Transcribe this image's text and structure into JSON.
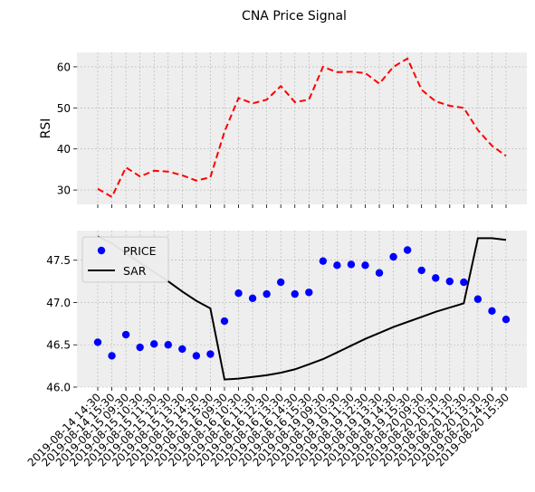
{
  "figure_title": "CNA Price Signal",
  "chart_data": [
    {
      "type": "line",
      "panel": "rsi",
      "title": "",
      "xlabel": "",
      "ylabel": "RSI",
      "ylim": [
        26.5,
        63.5
      ],
      "yticks": [
        30,
        40,
        50,
        60
      ],
      "grid": true,
      "series": [
        {
          "values": [
            30.3,
            28.3,
            35.5,
            33.3,
            34.7,
            34.5,
            33.6,
            32.3,
            33.1,
            44.2,
            52.4,
            51.1,
            52.0,
            55.3,
            51.4,
            52.0,
            60.0,
            58.7,
            58.8,
            58.5,
            55.9,
            60.0,
            62.0,
            54.4,
            51.6,
            50.5,
            50.0,
            44.6,
            40.8,
            38.3
          ],
          "color": "#ff0000",
          "style": "dashed"
        }
      ]
    },
    {
      "type": "scatter",
      "panel": "price",
      "title": "",
      "xlabel": "",
      "ylabel": "",
      "ylim": [
        46.0,
        47.85
      ],
      "yticks": [
        46.0,
        46.5,
        47.0,
        47.5
      ],
      "ytick_labels": [
        "46.0",
        "46.5",
        "47.0",
        "47.5"
      ],
      "grid": true,
      "legend": {
        "placement": "top-left"
      },
      "categories": [
        "2019-08-14 14:30",
        "2019-08-14 15:30",
        "2019-08-15 09:30",
        "2019-08-15 10:30",
        "2019-08-15 11:30",
        "2019-08-15 12:30",
        "2019-08-15 13:30",
        "2019-08-15 14:30",
        "2019-08-15 15:30",
        "2019-08-16 09:30",
        "2019-08-16 10:30",
        "2019-08-16 11:30",
        "2019-08-16 12:30",
        "2019-08-16 13:30",
        "2019-08-16 14:30",
        "2019-08-16 15:30",
        "2019-08-19 09:30",
        "2019-08-19 10:30",
        "2019-08-19 11:30",
        "2019-08-19 12:30",
        "2019-08-19 13:30",
        "2019-08-19 14:30",
        "2019-08-19 15:30",
        "2019-08-20 09:30",
        "2019-08-20 10:30",
        "2019-08-20 11:30",
        "2019-08-20 12:30",
        "2019-08-20 13:30",
        "2019-08-20 14:30",
        "2019-08-20 15:30"
      ],
      "series": [
        {
          "name": "PRICE",
          "kind": "scatter",
          "color": "#0000ff",
          "values": [
            46.53,
            46.37,
            46.62,
            46.47,
            46.51,
            46.5,
            46.45,
            46.37,
            46.39,
            46.78,
            47.11,
            47.05,
            47.1,
            47.24,
            47.1,
            47.12,
            47.49,
            47.44,
            47.45,
            47.44,
            47.35,
            47.54,
            47.62,
            47.38,
            47.29,
            47.25,
            47.24,
            47.04,
            46.9,
            46.8
          ]
        },
        {
          "name": "SAR",
          "kind": "line",
          "color": "#000000",
          "values": [
            47.78,
            47.7,
            47.58,
            47.47,
            47.36,
            47.25,
            47.13,
            47.02,
            46.93,
            46.09,
            46.1,
            46.12,
            46.14,
            46.17,
            46.21,
            46.27,
            46.33,
            46.41,
            46.49,
            46.57,
            46.64,
            46.71,
            46.77,
            46.83,
            46.89,
            46.94,
            46.99,
            47.76,
            47.76,
            47.74
          ]
        }
      ]
    }
  ]
}
